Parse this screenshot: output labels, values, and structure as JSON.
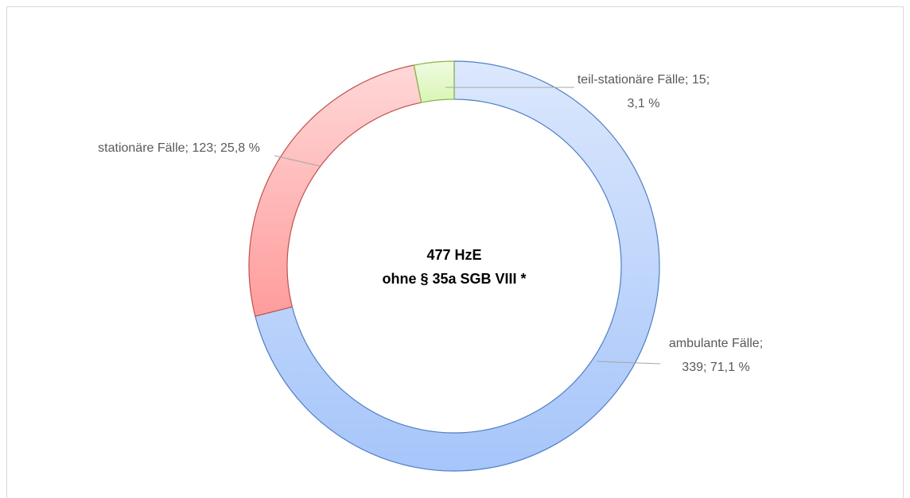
{
  "chart_data": {
    "type": "donut",
    "center_label": [
      "477 HzE",
      "ohne § 35a SGB VIII *"
    ],
    "categories": [
      "ambulante Fälle",
      "stationäre Fälle",
      "teil-stationäre Fälle"
    ],
    "values": [
      339,
      123,
      15
    ],
    "value_labels": [
      "ambulante Fälle; 339; 71,1 %",
      "stationäre Fälle; 123; 25,8 %",
      "teil-stationäre Fälle; 15; 3,1 %"
    ],
    "colors": [
      "#a6c5fa",
      "#ff9c9c",
      "#d8f5b4"
    ],
    "edge_colors": [
      "#4f7fc4",
      "#c0504d",
      "#8cb24d"
    ]
  }
}
